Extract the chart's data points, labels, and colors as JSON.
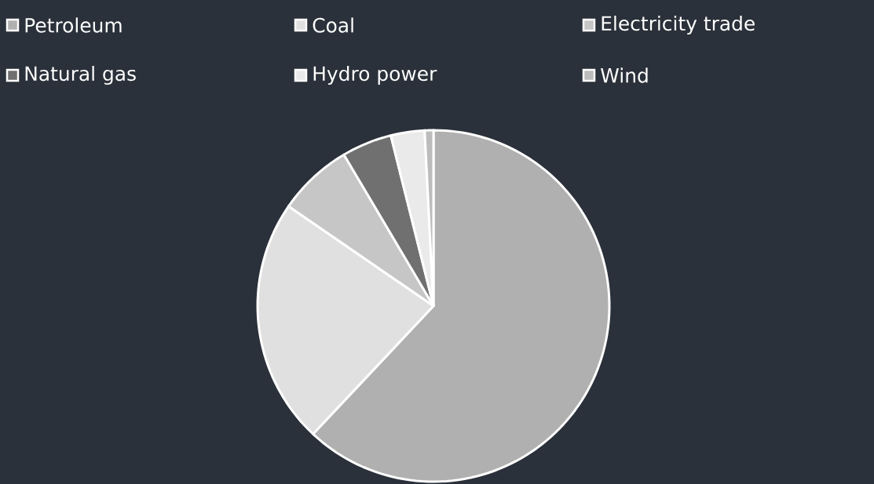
{
  "chart_data": {
    "type": "pie",
    "categories": [
      "Petroleum",
      "Coal",
      "Electricity trade",
      "Natural gas",
      "Hydro power",
      "Wind"
    ],
    "values": [
      62.0,
      22.6,
      6.9,
      4.6,
      3.1,
      0.8
    ],
    "colors": [
      "#b0b0b0",
      "#e0e0e0",
      "#c6c6c6",
      "#707070",
      "#eaeaea",
      "#bcbcbc"
    ],
    "legend": "top left"
  }
}
